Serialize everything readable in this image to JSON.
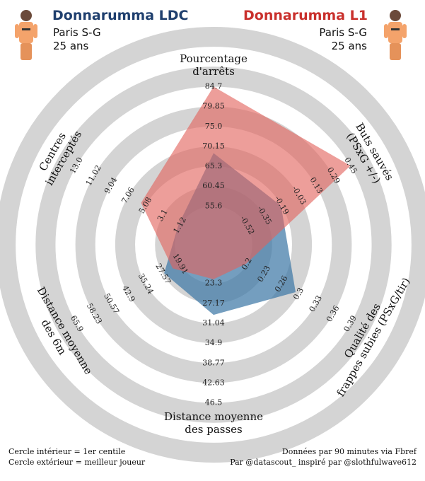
{
  "left_player": {
    "name": "Donnarumma LDC",
    "club": "Paris S-G",
    "age": "25 ans",
    "color": "#1f3f6e"
  },
  "right_player": {
    "name": "Donnarumma L1",
    "club": "Paris S-G",
    "age": "25 ans",
    "color": "#c9302c"
  },
  "footer": {
    "left_line1": "Cercle intérieur = 1er centile",
    "left_line2": "Cercle extérieur = meilleur joueur",
    "right_line1": "Données par 90 minutes via Fbref",
    "right_line2": "Par @datascout_ inspiré par @slothfulwave612"
  },
  "chart_data": {
    "type": "radar",
    "rings": 5,
    "ring_color": "#d4d4d4",
    "axes": [
      {
        "label": [
          "Pourcentage",
          "d'arrêts"
        ],
        "ticks": [
          "55.6",
          "60.45",
          "65.3",
          "70.15",
          "75.0",
          "79.85",
          "84.7"
        ],
        "min": 50.75,
        "max": 84.7
      },
      {
        "label": [
          "Buts sauvés",
          "(PSxG +/-)"
        ],
        "ticks": [
          "-0.52",
          "-0.35",
          "-0.19",
          "-0.03",
          "0.13",
          "0.29",
          "0.45"
        ],
        "min": -0.68,
        "max": 0.45
      },
      {
        "label": [
          "Qualité des",
          "frappes subies (PSxG/tir)"
        ],
        "ticks": [
          "0.2",
          "0.23",
          "0.26",
          "0.3",
          "0.33",
          "0.36",
          "0.39"
        ],
        "min": 0.17,
        "max": 0.39
      },
      {
        "label": [
          "Distance moyenne",
          "des passes"
        ],
        "ticks": [
          "23.3",
          "27.17",
          "31.04",
          "34.9",
          "38.77",
          "42.63",
          "46.5"
        ],
        "min": 19.43,
        "max": 46.5
      },
      {
        "label": [
          "Distance moyenne",
          "des 6m"
        ],
        "ticks": [
          "19.91",
          "27.57",
          "35.24",
          "42.9",
          "50.57",
          "58.23",
          "65.9"
        ],
        "min": 12.24,
        "max": 65.9
      },
      {
        "label": [
          "Centres",
          "interceptés"
        ],
        "ticks": [
          "1.12",
          "3.1",
          "5.08",
          "7.06",
          "9.04",
          "11.02",
          "13.0"
        ],
        "min": -0.86,
        "max": 13.0
      }
    ],
    "series": [
      {
        "name": "Donnarumma LDC",
        "color": "#3f78a6",
        "values": [
          68.5,
          -0.2,
          0.29,
          29.4,
          27.0,
          1.3
        ]
      },
      {
        "name": "Donnarumma L1",
        "color": "#e2625c",
        "values": [
          84.7,
          0.45,
          0.2,
          22.5,
          23.2,
          5.6
        ]
      }
    ]
  }
}
